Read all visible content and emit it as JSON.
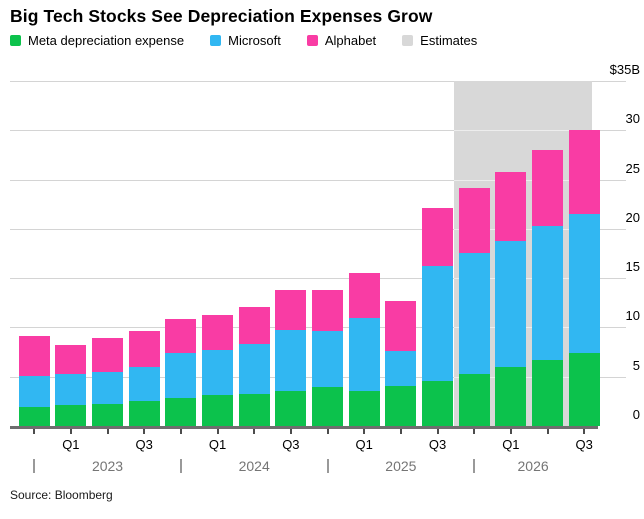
{
  "title": "Big Tech Stocks See Depreciation Expenses Grow",
  "source": "Source: Bloomberg",
  "colors": {
    "meta_green": "#0cc24c",
    "microsoft_blue": "#31b7f2",
    "alphabet_pink": "#f93ca4",
    "estimates_gray": "#d8d8d8",
    "gridline": "#d4d4d4",
    "axis": "#6e6e6e",
    "tick": "#4c4c4c",
    "year_text": "#757575",
    "separator": "#999999"
  },
  "legend": [
    {
      "label": "Meta depreciation expense",
      "color": "#0cc24c"
    },
    {
      "label": "Microsoft",
      "color": "#31b7f2"
    },
    {
      "label": "Alphabet",
      "color": "#f93ca4"
    },
    {
      "label": "Estimates",
      "color": "#d8d8d8"
    }
  ],
  "chart_data": {
    "type": "bar",
    "stacked": true,
    "unit": "$B",
    "title": "Big Tech Stocks See Depreciation Expenses Grow",
    "x": [
      "Q4 2022",
      "Q1 2023",
      "Q2 2023",
      "Q3 2023",
      "Q4 2023",
      "Q1 2024",
      "Q2 2024",
      "Q3 2024",
      "Q4 2024",
      "Q1 2025",
      "Q2 2025",
      "Q3 2025",
      "Q4 2025",
      "Q1 2026",
      "Q2 2026",
      "Q3 2026"
    ],
    "series": [
      {
        "name": "Meta depreciation expense",
        "color": "#0cc24c",
        "values": [
          1.9,
          2.1,
          2.2,
          2.5,
          2.8,
          3.1,
          3.2,
          3.6,
          4.0,
          3.6,
          4.1,
          4.6,
          5.3,
          6.0,
          6.7,
          7.4
        ]
      },
      {
        "name": "Microsoft",
        "color": "#31b7f2",
        "values": [
          3.2,
          3.2,
          3.3,
          3.5,
          4.6,
          4.6,
          5.1,
          6.1,
          5.6,
          7.4,
          3.5,
          11.6,
          12.3,
          12.8,
          13.6,
          14.1
        ]
      },
      {
        "name": "Alphabet",
        "color": "#f93ca4",
        "values": [
          4.0,
          2.9,
          3.4,
          3.6,
          3.5,
          3.6,
          3.8,
          4.1,
          4.2,
          4.5,
          5.1,
          5.9,
          6.5,
          7.0,
          7.7,
          8.5
        ]
      }
    ],
    "estimates_start_index": 12,
    "estimates_label": "Estimates",
    "ylim": [
      0,
      35
    ],
    "yticks": [
      0,
      5,
      10,
      15,
      20,
      25,
      30
    ],
    "ytop_label": "$35B",
    "grid": true,
    "legend_position": "top",
    "quarter_tick_labels": [
      {
        "index": 1,
        "label": "Q1"
      },
      {
        "index": 3,
        "label": "Q3"
      },
      {
        "index": 5,
        "label": "Q1"
      },
      {
        "index": 7,
        "label": "Q3"
      },
      {
        "index": 9,
        "label": "Q1"
      },
      {
        "index": 11,
        "label": "Q3"
      },
      {
        "index": 13,
        "label": "Q1"
      },
      {
        "index": 15,
        "label": "Q3"
      }
    ],
    "year_labels": [
      "2023",
      "2024",
      "2025",
      "2026"
    ],
    "year_separator_indices": [
      0,
      4,
      8,
      12
    ]
  }
}
